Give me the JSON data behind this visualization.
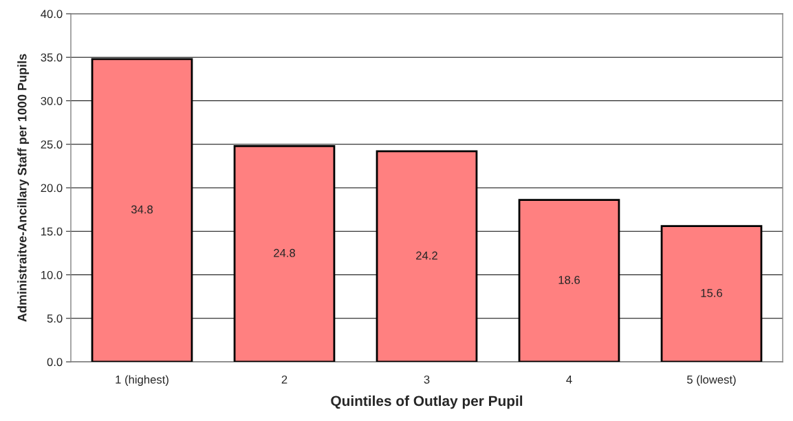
{
  "chart_data": {
    "type": "bar",
    "xlabel": "Quintiles of Outlay per Pupil",
    "ylabel": "Administraitve-Ancillary Staff per 1000 Pupils",
    "categories": [
      "1 (highest)",
      "2",
      "3",
      "4",
      "5 (lowest)"
    ],
    "values": [
      34.8,
      24.8,
      24.2,
      18.6,
      15.6
    ],
    "color": "#ff8080",
    "data_labels": true,
    "ylim": [
      0,
      40
    ],
    "yticks": [
      {
        "value": 0,
        "label": "0.0"
      },
      {
        "value": 5,
        "label": "5.0"
      },
      {
        "value": 10,
        "label": "10.0"
      },
      {
        "value": 15,
        "label": "15.0"
      },
      {
        "value": 20,
        "label": "20.0"
      },
      {
        "value": 25,
        "label": "25.0"
      },
      {
        "value": 30,
        "label": "30.0"
      },
      {
        "value": 35,
        "label": "35.0"
      },
      {
        "value": 40,
        "label": "40.0"
      }
    ],
    "grid": "y",
    "legend": false
  }
}
